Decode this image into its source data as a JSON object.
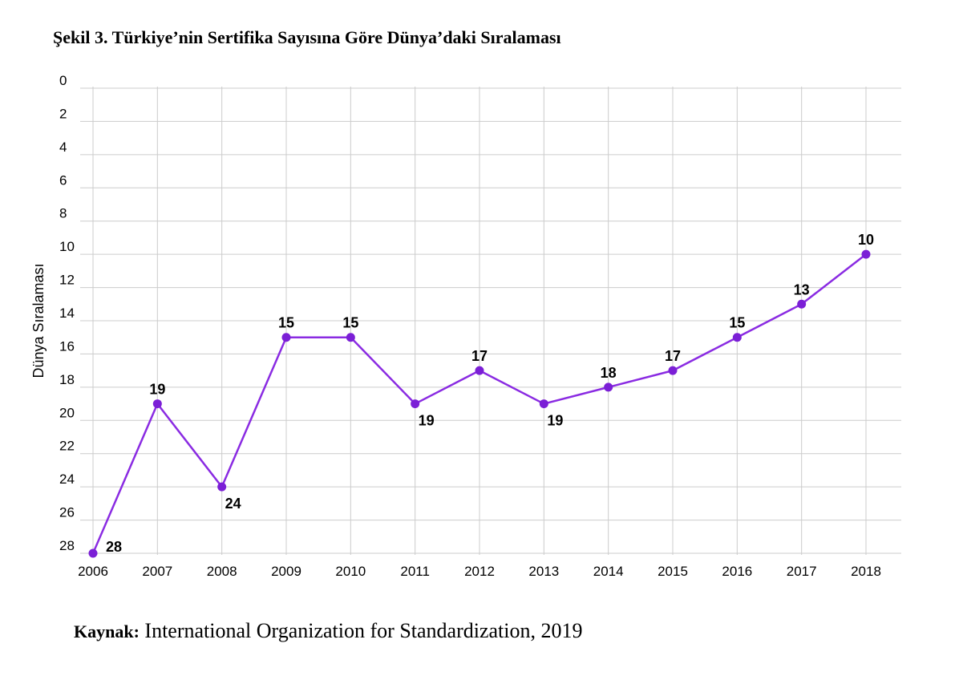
{
  "figure": {
    "title": "Şekil 3. Türkiye’nin Sertifika Sayısına Göre Dünya’daki Sıralaması",
    "source_label": "Kaynak:",
    "source_text": " International Organization for Standardization, 2019"
  },
  "chart_data": {
    "type": "line",
    "title": "Şekil 3. Türkiye’nin Sertifika Sayısına Göre Dünya’daki Sıralaması",
    "xlabel": "",
    "ylabel": "Dünya Sıralaması",
    "x": [
      2006,
      2007,
      2008,
      2009,
      2010,
      2011,
      2012,
      2013,
      2014,
      2015,
      2016,
      2017,
      2018
    ],
    "series": [
      {
        "values": [
          28,
          19,
          24,
          15,
          15,
          19,
          17,
          19,
          18,
          17,
          15,
          13,
          10
        ]
      }
    ],
    "label_positions": [
      "right",
      "above",
      "below",
      "above",
      "above",
      "below",
      "above",
      "below",
      "above",
      "above",
      "above",
      "above",
      "above"
    ],
    "ylim": [
      0,
      28
    ],
    "y_inverted": true,
    "y_ticks": [
      0,
      2,
      4,
      6,
      8,
      10,
      12,
      14,
      16,
      18,
      20,
      22,
      24,
      26,
      28
    ],
    "grid": true,
    "legend": "none",
    "colors": {
      "line": "#8a2be2",
      "marker": "#7b1fd6",
      "grid": "#cccccc"
    }
  }
}
